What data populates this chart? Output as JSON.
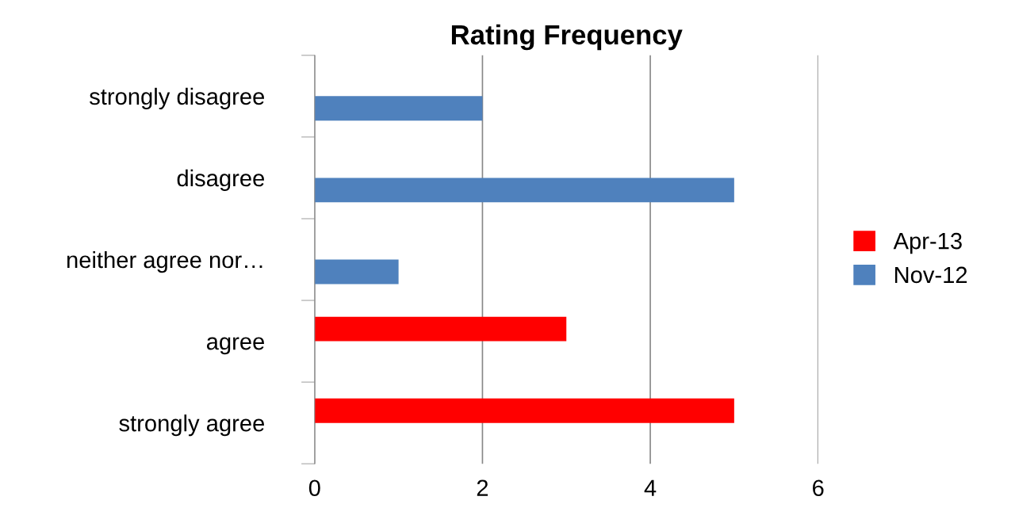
{
  "chart_data": {
    "type": "bar",
    "orientation": "horizontal",
    "title": "Rating Frequency",
    "categories": [
      "strongly disagree",
      "disagree",
      "neither agree nor…",
      "agree",
      "strongly agree"
    ],
    "series": [
      {
        "name": "Apr-13",
        "color": "#ff0000",
        "values": [
          null,
          null,
          null,
          3,
          5
        ]
      },
      {
        "name": "Nov-12",
        "color": "#4f81bd",
        "values": [
          2,
          5,
          1,
          null,
          null
        ]
      }
    ],
    "xlim": [
      0,
      6
    ],
    "xticks": [
      0,
      2,
      4,
      6
    ],
    "grid": "x",
    "legend": "right"
  }
}
